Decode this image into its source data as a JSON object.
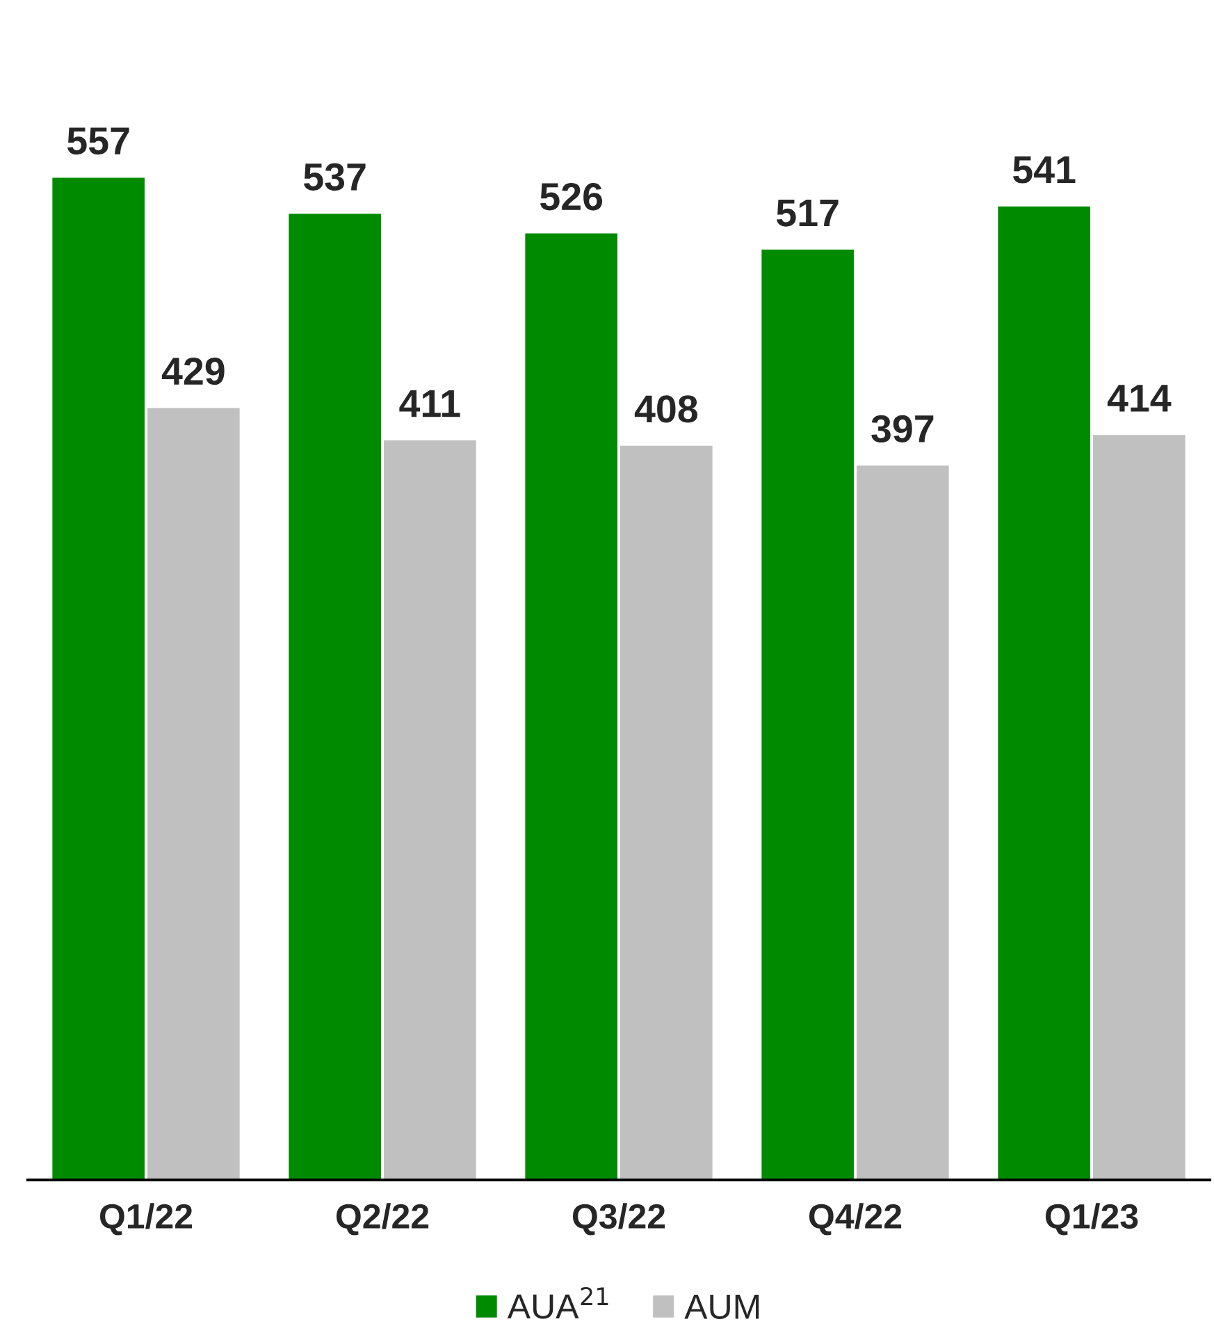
{
  "chart_data": {
    "type": "bar",
    "categories": [
      "Q1/22",
      "Q2/22",
      "Q3/22",
      "Q4/22",
      "Q1/23"
    ],
    "series": [
      {
        "name": "AUA$^{21}$",
        "color": "#008a00",
        "values": [
          557,
          537,
          526,
          517,
          541
        ]
      },
      {
        "name": "AUM",
        "color": "#c0c0c0",
        "values": [
          429,
          411,
          408,
          397,
          414
        ]
      }
    ],
    "data_labels": true,
    "grid": false,
    "legend": "bottom"
  }
}
